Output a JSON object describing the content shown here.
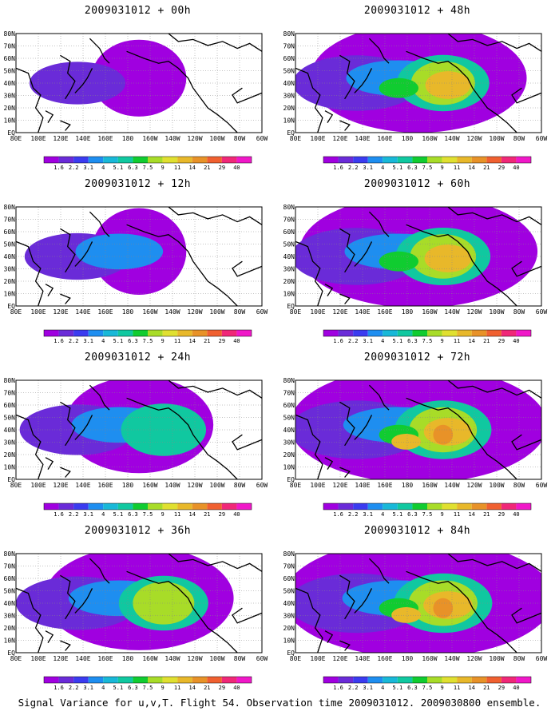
{
  "caption": "Signal Variance for u,v,T. Flight 54. Observation time 2009031012. 2009030800 ensemble.",
  "lat_labels": [
    "80N",
    "70N",
    "60N",
    "50N",
    "40N",
    "30N",
    "20N",
    "10N",
    "EQ"
  ],
  "lon_labels": [
    "80E",
    "100E",
    "120E",
    "140E",
    "160E",
    "180",
    "160W",
    "140W",
    "120W",
    "100W",
    "80W",
    "60W"
  ],
  "colorbar": {
    "labels": [
      "1.6",
      "2.2",
      "3.1",
      "4",
      "5.1",
      "6.3",
      "7.5",
      "9",
      "11",
      "14",
      "21",
      "29",
      "40"
    ],
    "colors": [
      "#a000e0",
      "#6a2bd8",
      "#3b3bf0",
      "#1e8ef0",
      "#18b8d8",
      "#10c8a0",
      "#10cc30",
      "#a8dc28",
      "#e0e030",
      "#e8b82a",
      "#e89228",
      "#f06030",
      "#f02878",
      "#f018c8"
    ]
  },
  "panels": [
    {
      "id": "p00",
      "title": "2009031012 + 00h",
      "intensity": 0.15
    },
    {
      "id": "p12",
      "title": "2009031012 + 12h",
      "intensity": 0.35
    },
    {
      "id": "p24",
      "title": "2009031012 + 24h",
      "intensity": 0.55
    },
    {
      "id": "p36",
      "title": "2009031012 + 36h",
      "intensity": 0.7
    },
    {
      "id": "p48",
      "title": "2009031012 + 48h",
      "intensity": 0.8
    },
    {
      "id": "p60",
      "title": "2009031012 + 60h",
      "intensity": 0.88
    },
    {
      "id": "p72",
      "title": "2009031012 + 72h",
      "intensity": 0.95
    },
    {
      "id": "p84",
      "title": "2009031012 + 84h",
      "intensity": 1.0
    }
  ]
}
